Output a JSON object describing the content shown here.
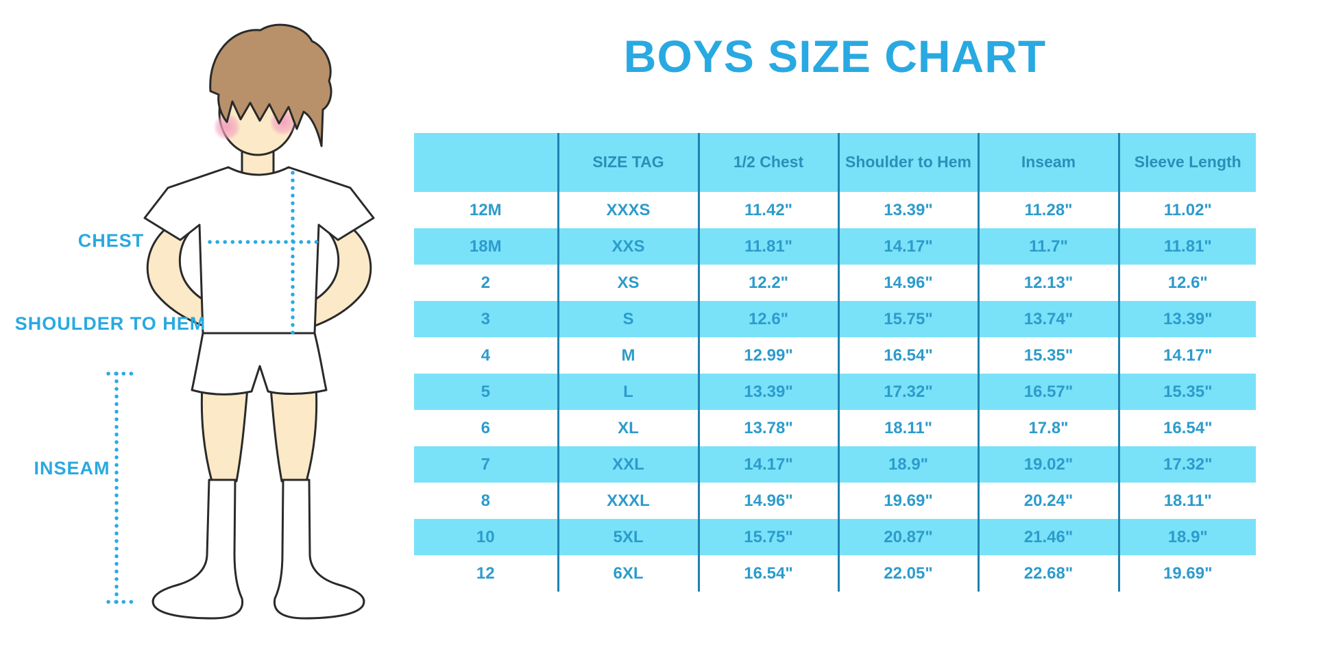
{
  "title": "BOYS SIZE CHART",
  "colors": {
    "accent": "#29A9E1",
    "band": "#79E2F9",
    "header_text": "#2A8FB8",
    "cell_text": "#2D9BCB",
    "divider": "#1E81B0",
    "dotted": "#29ABE2",
    "skin": "#FBE9C7",
    "hair": "#B8916B",
    "blush": "#F2A0BE"
  },
  "diagram": {
    "labels": {
      "chest": "CHEST",
      "shoulder_to_hem": "SHOULDER TO HEM",
      "inseam": "INSEAM"
    }
  },
  "chart_data": {
    "type": "table",
    "title": "BOYS SIZE CHART",
    "columns": [
      "",
      "SIZE TAG",
      "1/2 Chest",
      "Shoulder to Hem",
      "Inseam",
      "Sleeve Length"
    ],
    "rows": [
      [
        "12M",
        "XXXS",
        "11.42\"",
        "13.39\"",
        "11.28\"",
        "11.02\""
      ],
      [
        "18M",
        "XXS",
        "11.81\"",
        "14.17\"",
        "11.7\"",
        "11.81\""
      ],
      [
        "2",
        "XS",
        "12.2\"",
        "14.96\"",
        "12.13\"",
        "12.6\""
      ],
      [
        "3",
        "S",
        "12.6\"",
        "15.75\"",
        "13.74\"",
        "13.39\""
      ],
      [
        "4",
        "M",
        "12.99\"",
        "16.54\"",
        "15.35\"",
        "14.17\""
      ],
      [
        "5",
        "L",
        "13.39\"",
        "17.32\"",
        "16.57\"",
        "15.35\""
      ],
      [
        "6",
        "XL",
        "13.78\"",
        "18.11\"",
        "17.8\"",
        "16.54\""
      ],
      [
        "7",
        "XXL",
        "14.17\"",
        "18.9\"",
        "19.02\"",
        "17.32\""
      ],
      [
        "8",
        "XXXL",
        "14.96\"",
        "19.69\"",
        "20.24\"",
        "18.11\""
      ],
      [
        "10",
        "5XL",
        "15.75\"",
        "20.87\"",
        "21.46\"",
        "18.9\""
      ],
      [
        "12",
        "6XL",
        "16.54\"",
        "22.05\"",
        "22.68\"",
        "19.69\""
      ]
    ],
    "row_banding": [
      "white",
      "cyan"
    ],
    "legend_position": "none",
    "grid": "vertical-dividers-only"
  }
}
